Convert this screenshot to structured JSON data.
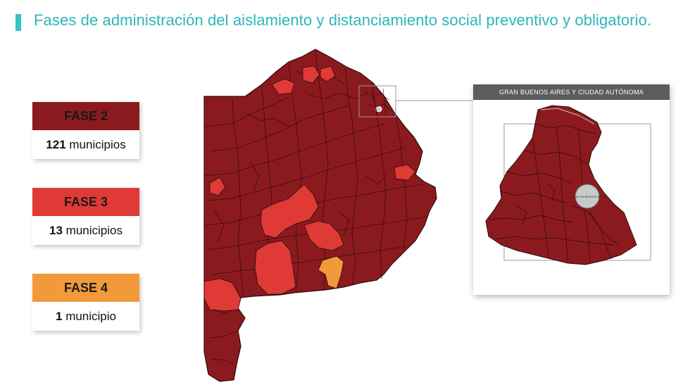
{
  "title": "Fases de administración del aislamiento y distanciamiento social preventivo y obligatorio.",
  "colors": {
    "accent": "#2bb6bc",
    "fase2": "#8b1a1f",
    "fase3": "#e03a36",
    "fase4": "#f29a3b",
    "borders": "#2a0a0a"
  },
  "legend": [
    {
      "label": "FASE 2",
      "count": "121",
      "unit": "municipios",
      "color": "#8b1a1f"
    },
    {
      "label": "FASE 3",
      "count": "13",
      "unit": "municipios",
      "color": "#e03a36"
    },
    {
      "label": "FASE 4",
      "count": "1",
      "unit": "municipio",
      "color": "#f29a3b"
    }
  ],
  "inset": {
    "header": "GRAN BUENOS AIRES Y CIUDAD AUTÓNOMA",
    "city_label": "CIUDAD DE BUENOS AIRES"
  }
}
